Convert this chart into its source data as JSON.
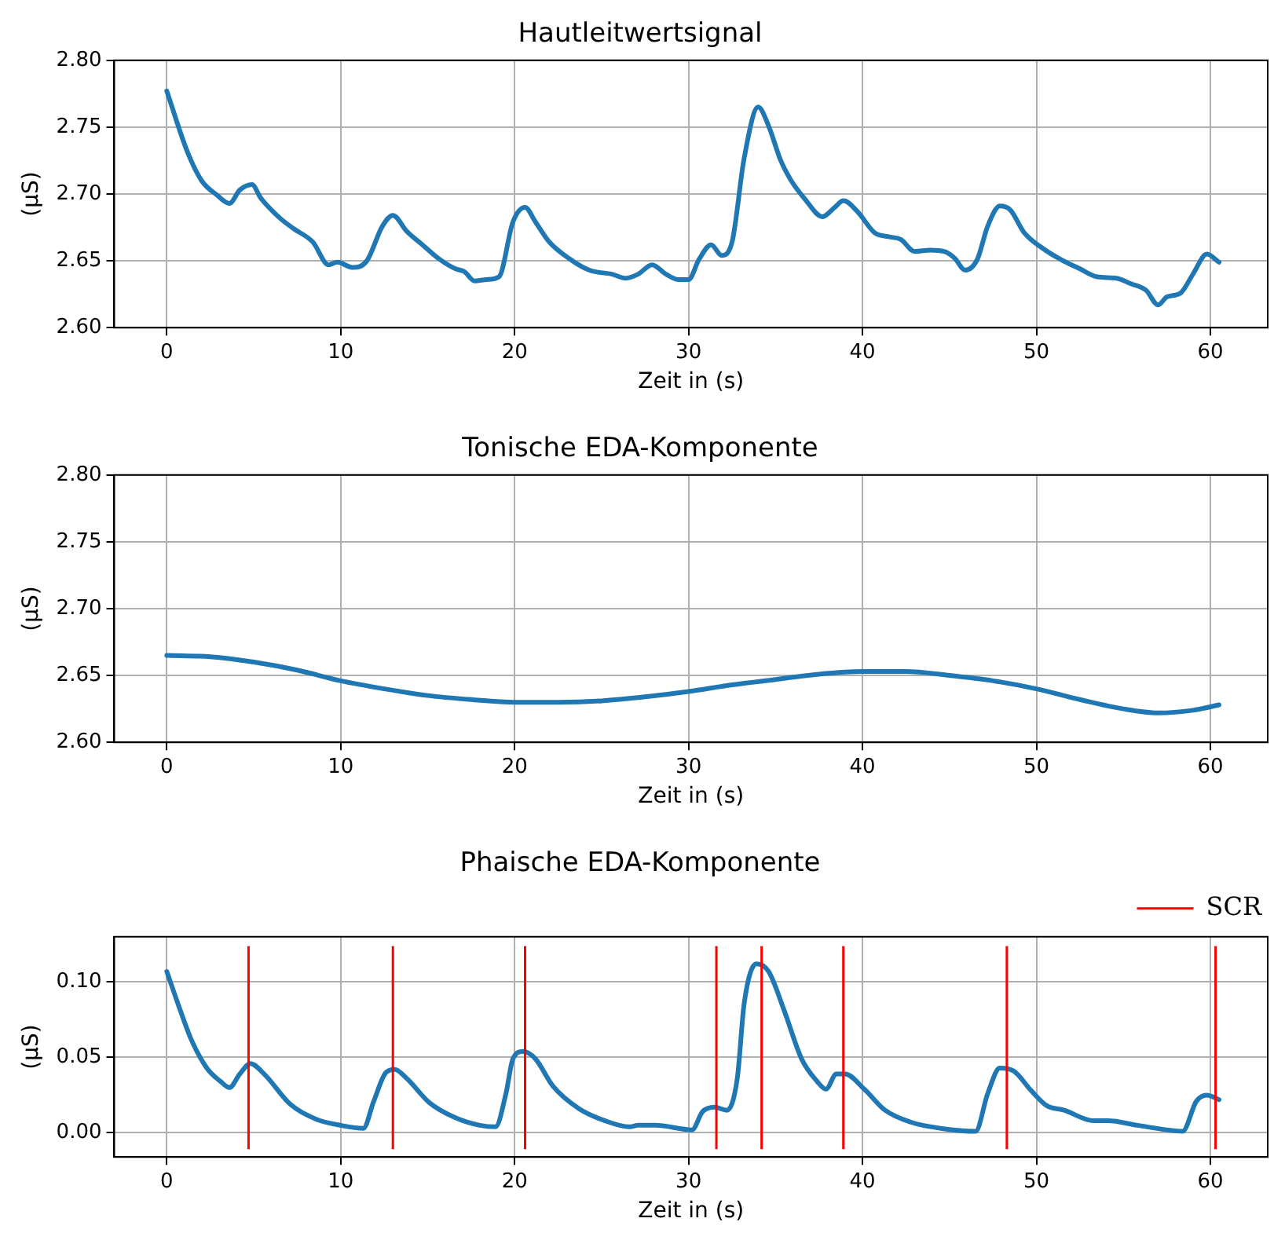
{
  "chart_data": [
    {
      "type": "line",
      "title": "Hautleitwertsignal",
      "xlabel": "Zeit in (s)",
      "ylabel": "(μS)",
      "xlim": [
        -3.02,
        63.3
      ],
      "xticks": [
        0,
        10,
        20,
        30,
        40,
        50,
        60
      ],
      "ylim": [
        2.6,
        2.8
      ],
      "yticks": [
        {
          "value": 2.6,
          "label": "2.60"
        },
        {
          "value": 2.65,
          "label": "2.65"
        },
        {
          "value": 2.7,
          "label": "2.70"
        },
        {
          "value": 2.75,
          "label": "2.75"
        },
        {
          "value": 2.8,
          "label": "2.80"
        }
      ],
      "grid": true,
      "legend": false,
      "line_style": "solid",
      "marker": "none",
      "series": [
        {
          "color": "#1f77b4",
          "x": [
            0,
            1.2,
            2.0,
            2.9,
            3.6,
            4.2,
            4.9,
            5.4,
            6.5,
            7.3,
            8.4,
            9.3,
            9.8,
            10.7,
            11.5,
            12.4,
            13.0,
            13.8,
            14.7,
            15.7,
            16.6,
            17.1,
            17.7,
            18.4,
            19.1,
            19.9,
            20.6,
            21.2,
            22.0,
            23.1,
            24.3,
            25.6,
            26.4,
            27.1,
            27.9,
            28.7,
            29.4,
            30.0,
            30.6,
            31.3,
            31.9,
            32.5,
            33.2,
            34.0,
            34.6,
            35.3,
            35.9,
            36.7,
            37.7,
            38.4,
            38.9,
            39.7,
            40.7,
            41.5,
            42.2,
            43.0,
            43.9,
            44.7,
            45.3,
            45.9,
            46.6,
            47.2,
            47.9,
            48.5,
            49.3,
            50.4,
            51.4,
            52.5,
            53.5,
            54.6,
            55.4,
            56.3,
            57.0,
            57.5,
            58.3,
            59.0,
            59.8,
            60.5
          ],
          "values": [
            2.777,
            2.731,
            2.71,
            2.699,
            2.693,
            2.703,
            2.707,
            2.697,
            2.682,
            2.674,
            2.664,
            2.647,
            2.649,
            2.645,
            2.65,
            2.676,
            2.684,
            2.672,
            2.662,
            2.651,
            2.644,
            2.642,
            2.635,
            2.636,
            2.638,
            2.679,
            2.69,
            2.679,
            2.664,
            2.652,
            2.643,
            2.64,
            2.637,
            2.64,
            2.647,
            2.64,
            2.636,
            2.636,
            2.651,
            2.662,
            2.654,
            2.664,
            2.727,
            2.765,
            2.751,
            2.725,
            2.71,
            2.696,
            2.683,
            2.69,
            2.695,
            2.687,
            2.671,
            2.668,
            2.666,
            2.657,
            2.658,
            2.657,
            2.652,
            2.643,
            2.651,
            2.676,
            2.691,
            2.688,
            2.671,
            2.659,
            2.651,
            2.644,
            2.638,
            2.637,
            2.633,
            2.628,
            2.617,
            2.623,
            2.626,
            2.64,
            2.655,
            2.649
          ]
        }
      ]
    },
    {
      "type": "line",
      "title": "Tonische EDA-Komponente",
      "xlabel": "Zeit in (s)",
      "ylabel": "(μS)",
      "xlim": [
        -3.02,
        63.3
      ],
      "xticks": [
        0,
        10,
        20,
        30,
        40,
        50,
        60
      ],
      "ylim": [
        2.6,
        2.8
      ],
      "yticks": [
        {
          "value": 2.6,
          "label": "2.60"
        },
        {
          "value": 2.65,
          "label": "2.65"
        },
        {
          "value": 2.7,
          "label": "2.70"
        },
        {
          "value": 2.75,
          "label": "2.75"
        },
        {
          "value": 2.8,
          "label": "2.80"
        }
      ],
      "grid": true,
      "legend": false,
      "line_style": "solid",
      "marker": "none",
      "series": [
        {
          "color": "#1f77b4",
          "x": [
            0,
            2.5,
            5,
            7.5,
            10,
            12.5,
            15,
            17.5,
            20,
            22.5,
            25,
            27.5,
            30,
            32.5,
            35,
            37.5,
            40,
            42.5,
            45,
            47.5,
            50,
            52.5,
            55,
            57,
            59,
            60.5
          ],
          "values": [
            2.665,
            2.664,
            2.66,
            2.654,
            2.646,
            2.64,
            2.635,
            2.632,
            2.63,
            2.63,
            2.631,
            2.634,
            2.638,
            2.643,
            2.647,
            2.651,
            2.653,
            2.653,
            2.65,
            2.646,
            2.64,
            2.632,
            2.625,
            2.622,
            2.624,
            2.628
          ]
        }
      ]
    },
    {
      "type": "line",
      "title": "Phaische EDA-Komponente",
      "xlabel": "Zeit in (s)",
      "ylabel": "(μS)",
      "xlim": [
        -3.02,
        63.3
      ],
      "xticks": [
        0,
        10,
        20,
        30,
        40,
        50,
        60
      ],
      "ylim": [
        -0.016,
        0.13
      ],
      "yticks": [
        {
          "value": 0,
          "label": "0.00"
        },
        {
          "value": 0.05,
          "label": "0.05"
        },
        {
          "value": 0.1,
          "label": "0.10"
        }
      ],
      "grid": true,
      "legend": "top right",
      "line_style": "solid",
      "marker": "none",
      "series": [
        {
          "color": "#1f77b4",
          "x": [
            0,
            0.6,
            1.4,
            2.3,
            3.1,
            3.6,
            4.2,
            4.8,
            5.6,
            7.1,
            8.6,
            10.0,
            11.3,
            11.9,
            12.6,
            13.1,
            13.8,
            15.1,
            16.6,
            18.0,
            18.9,
            19.5,
            19.9,
            20.5,
            21.2,
            22.2,
            23.7,
            25.2,
            26.6,
            27.1,
            28.1,
            30.2,
            30.8,
            31.5,
            32.2,
            32.8,
            33.2,
            33.9,
            34.6,
            35.5,
            36.5,
            37.4,
            37.9,
            38.5,
            39.0,
            40.1,
            41.3,
            42.8,
            44.5,
            46.5,
            47.2,
            47.9,
            48.7,
            49.7,
            50.6,
            51.6,
            53.3,
            54.1,
            55.8,
            57.5,
            58.4,
            59.2,
            59.8,
            60.5
          ],
          "values": [
            0.107,
            0.087,
            0.062,
            0.043,
            0.034,
            0.03,
            0.039,
            0.046,
            0.039,
            0.019,
            0.009,
            0.005,
            0.003,
            0.021,
            0.04,
            0.042,
            0.036,
            0.02,
            0.01,
            0.005,
            0.004,
            0.026,
            0.049,
            0.054,
            0.049,
            0.031,
            0.016,
            0.008,
            0.004,
            0.005,
            0.005,
            0.002,
            0.014,
            0.017,
            0.015,
            0.036,
            0.086,
            0.112,
            0.107,
            0.081,
            0.049,
            0.034,
            0.029,
            0.039,
            0.039,
            0.029,
            0.015,
            0.007,
            0.003,
            0.001,
            0.026,
            0.043,
            0.041,
            0.028,
            0.018,
            0.015,
            0.008,
            0.008,
            0.005,
            0.002,
            0.001,
            0.021,
            0.025,
            0.022
          ]
        }
      ],
      "ref_lines": [
        {
          "axis": "x",
          "value": 4.7,
          "label": "SCR",
          "color": "#ff0000"
        },
        {
          "axis": "x",
          "value": 13.0,
          "color": "#ff0000"
        },
        {
          "axis": "x",
          "value": 20.6,
          "color": "#ff0000"
        },
        {
          "axis": "x",
          "value": 31.6,
          "color": "#ff0000"
        },
        {
          "axis": "x",
          "value": 34.2,
          "color": "#ff0000"
        },
        {
          "axis": "x",
          "value": 38.9,
          "color": "#ff0000"
        },
        {
          "axis": "x",
          "value": 48.3,
          "color": "#ff0000"
        },
        {
          "axis": "x",
          "value": 60.3,
          "color": "#ff0000"
        }
      ]
    }
  ]
}
